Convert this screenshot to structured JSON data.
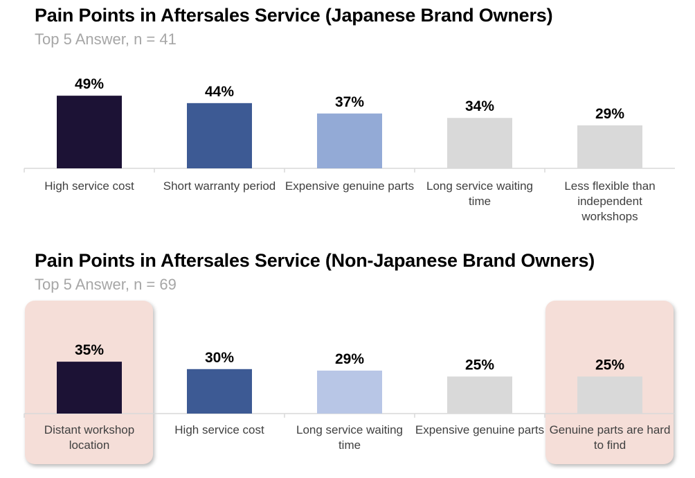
{
  "charts": [
    {
      "title": "Pain Points in Aftersales Service (Japanese Brand Owners)",
      "subtitle": "Top 5 Answer, n = 41",
      "chart_data": {
        "type": "bar",
        "ylim": [
          0,
          60
        ],
        "categories": [
          "High service cost",
          "Short warranty period",
          "Expensive genuine parts",
          "Long service waiting time",
          "Less flexible than independent workshops"
        ],
        "values": [
          49,
          44,
          37,
          34,
          29
        ],
        "data_labels": [
          "49%",
          "44%",
          "37%",
          "34%",
          "29%"
        ],
        "colors": [
          "#1c1235",
          "#3d5a94",
          "#93aad6",
          "#d9d9d9",
          "#d9d9d9"
        ],
        "highlighted_indices": []
      }
    },
    {
      "title": "Pain Points in Aftersales Service (Non-Japanese Brand Owners)",
      "subtitle": "Top 5 Answer, n = 69",
      "chart_data": {
        "type": "bar",
        "ylim": [
          0,
          60
        ],
        "categories": [
          "Distant workshop location",
          "High service cost",
          "Long service waiting time",
          "Expensive genuine parts",
          "Genuine parts are hard to find"
        ],
        "values": [
          35,
          30,
          29,
          25,
          25
        ],
        "data_labels": [
          "35%",
          "30%",
          "29%",
          "25%",
          "25%"
        ],
        "colors": [
          "#1c1235",
          "#3d5a94",
          "#b8c6e6",
          "#d9d9d9",
          "#d9d9d9"
        ],
        "highlighted_indices": [
          0,
          4
        ]
      }
    }
  ]
}
